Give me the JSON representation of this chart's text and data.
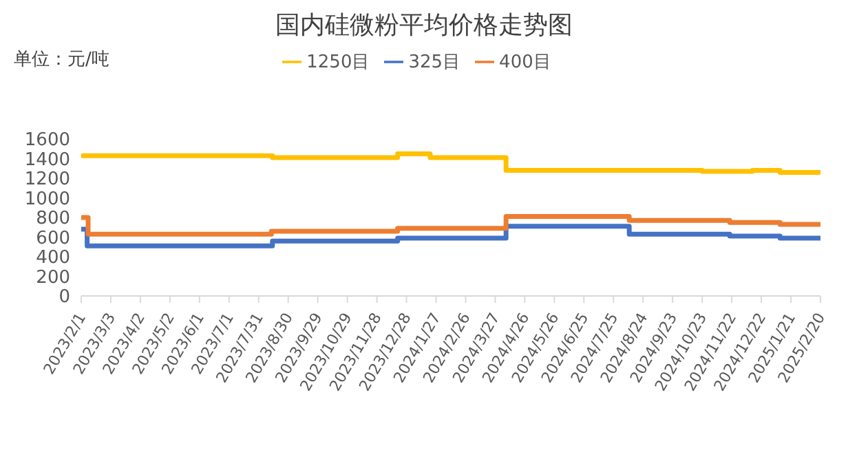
{
  "chart_data": {
    "type": "step",
    "title": "国内硅微粉平均价格走势图",
    "ylabel": "单位：元/吨",
    "legend": "top",
    "grid": false,
    "marker": "none",
    "line_style": "solid",
    "xlim": [
      "2023-02-01",
      "2025-02-20"
    ],
    "xticks": [
      {
        "value": "2023-02-01",
        "label": "2023/2/1"
      },
      {
        "value": "2023-03-03",
        "label": "2023/3/3"
      },
      {
        "value": "2023-04-02",
        "label": "2023/4/2"
      },
      {
        "value": "2023-05-02",
        "label": "2023/5/2"
      },
      {
        "value": "2023-06-01",
        "label": "2023/6/1"
      },
      {
        "value": "2023-07-01",
        "label": "2023/7/1"
      },
      {
        "value": "2023-07-31",
        "label": "2023/7/31"
      },
      {
        "value": "2023-08-30",
        "label": "2023/8/30"
      },
      {
        "value": "2023-09-29",
        "label": "2023/9/29"
      },
      {
        "value": "2023-10-29",
        "label": "2023/10/29"
      },
      {
        "value": "2023-11-28",
        "label": "2023/11/28"
      },
      {
        "value": "2023-12-28",
        "label": "2023/12/28"
      },
      {
        "value": "2024-01-27",
        "label": "2024/1/27"
      },
      {
        "value": "2024-02-26",
        "label": "2024/2/26"
      },
      {
        "value": "2024-03-27",
        "label": "2024/3/27"
      },
      {
        "value": "2024-04-26",
        "label": "2024/4/26"
      },
      {
        "value": "2024-05-26",
        "label": "2024/5/26"
      },
      {
        "value": "2024-06-25",
        "label": "2024/6/25"
      },
      {
        "value": "2024-07-25",
        "label": "2024/7/25"
      },
      {
        "value": "2024-08-24",
        "label": "2024/8/24"
      },
      {
        "value": "2024-09-23",
        "label": "2024/9/23"
      },
      {
        "value": "2024-10-23",
        "label": "2024/10/23"
      },
      {
        "value": "2024-11-22",
        "label": "2024/11/22"
      },
      {
        "value": "2024-12-22",
        "label": "2024/12/22"
      },
      {
        "value": "2025-01-21",
        "label": "2025/1/21"
      },
      {
        "value": "2025-02-20",
        "label": "2025/2/20"
      }
    ],
    "ylim": [
      0,
      1600
    ],
    "yticks": [
      0,
      200,
      400,
      600,
      800,
      1000,
      1200,
      1400,
      1600
    ],
    "series": [
      {
        "name": "325目",
        "color": "#4472c4",
        "x": [
          "2023-02-01",
          "2023-02-07",
          "2023-08-14",
          "2023-12-19",
          "2024-04-07",
          "2024-08-10",
          "2024-11-20",
          "2025-01-10",
          "2025-02-20"
        ],
        "values": [
          680,
          510,
          560,
          590,
          710,
          630,
          610,
          590,
          590
        ]
      },
      {
        "name": "400目",
        "color": "#ed7d31",
        "x": [
          "2023-02-01",
          "2023-02-08",
          "2023-08-13",
          "2023-12-19",
          "2024-04-07",
          "2024-08-10",
          "2024-11-20",
          "2025-01-10",
          "2025-02-20"
        ],
        "values": [
          800,
          630,
          660,
          690,
          810,
          770,
          750,
          730,
          730
        ]
      },
      {
        "name": "1250目",
        "color": "#ffc000",
        "x": [
          "2023-02-01",
          "2023-08-14",
          "2023-12-19",
          "2024-01-21",
          "2024-04-07",
          "2024-10-23",
          "2024-12-13",
          "2025-01-10",
          "2025-02-20"
        ],
        "values": [
          1430,
          1410,
          1450,
          1410,
          1280,
          1270,
          1280,
          1260,
          1260
        ]
      }
    ]
  }
}
